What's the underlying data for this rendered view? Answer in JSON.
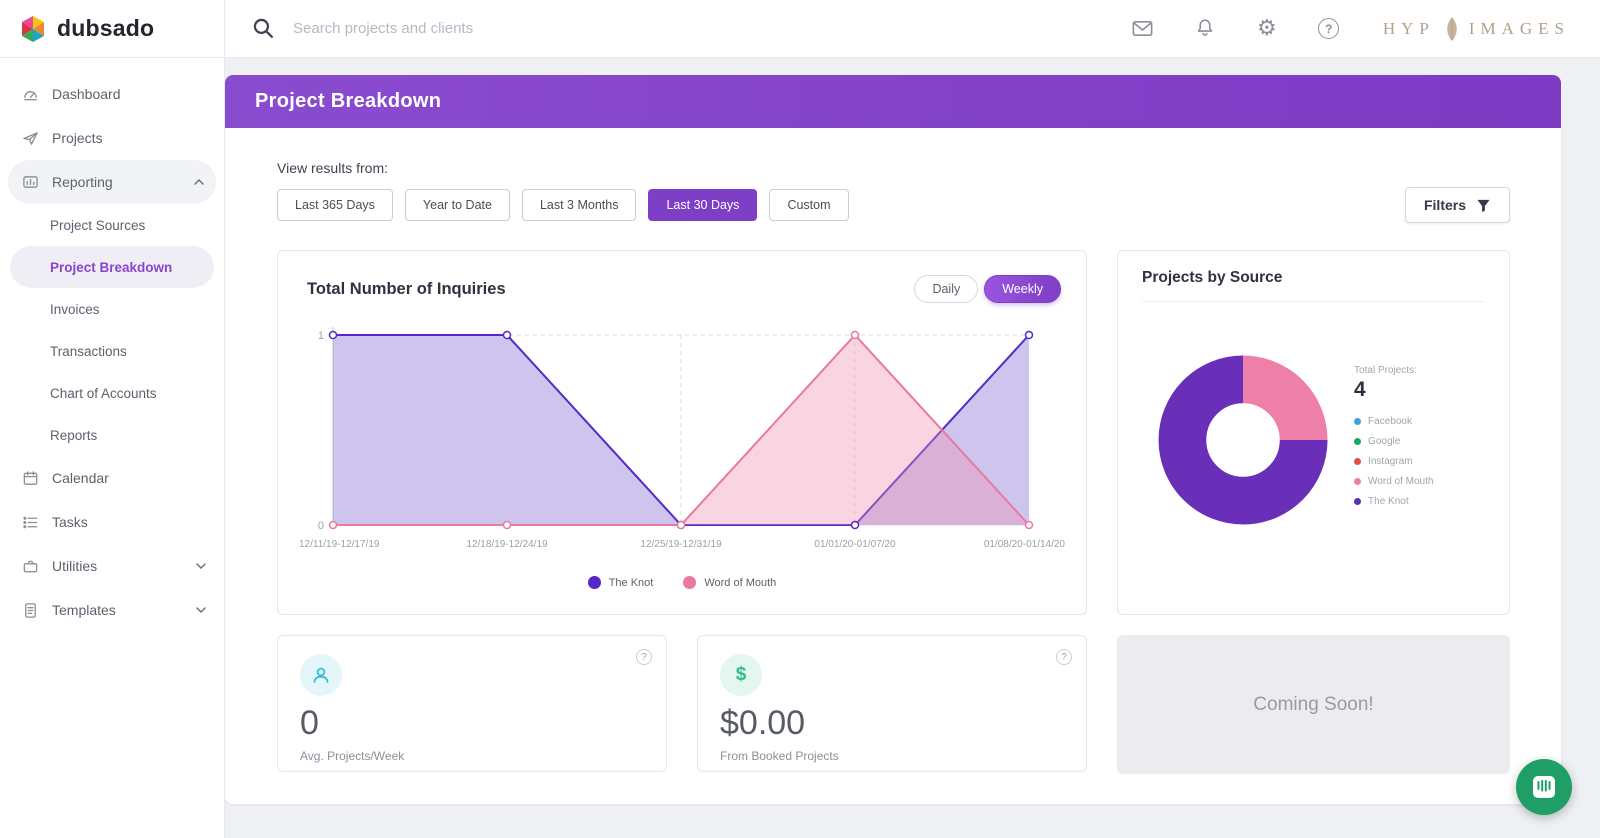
{
  "topbar": {
    "logo_text": "dubsado",
    "search_placeholder": "Search projects and clients",
    "brand": {
      "left": "HYP",
      "right": "IMAGES"
    }
  },
  "icons": {
    "gear": "⚙",
    "question": "?",
    "dollar": "$"
  },
  "colors": {
    "accent_purple": "#7e3ec6",
    "banner_gradient": [
      "#8a4ccf",
      "#7c3bc3"
    ],
    "active_nav_purple": "#8a45cc",
    "intercom_green": "#1f9e68"
  },
  "sidebar": {
    "items": [
      {
        "label": "Dashboard"
      },
      {
        "label": "Projects"
      },
      {
        "label": "Reporting",
        "expanded": true
      },
      {
        "label": "Calendar"
      },
      {
        "label": "Tasks"
      },
      {
        "label": "Utilities",
        "expanded": false
      },
      {
        "label": "Templates",
        "expanded": false
      }
    ],
    "reporting_children": [
      {
        "label": "Project Sources"
      },
      {
        "label": "Project Breakdown",
        "active": true
      },
      {
        "label": "Invoices"
      },
      {
        "label": "Transactions"
      },
      {
        "label": "Chart of Accounts"
      },
      {
        "label": "Reports"
      }
    ]
  },
  "page": {
    "title": "Project Breakdown",
    "view_results_label": "View results from:",
    "ranges": [
      {
        "label": "Last 365 Days",
        "active": false
      },
      {
        "label": "Year to Date",
        "active": false
      },
      {
        "label": "Last 3 Months",
        "active": false
      },
      {
        "label": "Last 30 Days",
        "active": true
      },
      {
        "label": "Custom",
        "active": false
      }
    ],
    "filters_label": "Filters",
    "toggle": {
      "daily": "Daily",
      "weekly": "Weekly",
      "active": "Weekly"
    }
  },
  "chart_data": [
    {
      "type": "area",
      "title": "Total Number of Inquiries",
      "categories": [
        "12/11/19-12/17/19",
        "12/18/19-12/24/19",
        "12/25/19-12/31/19",
        "01/01/20-01/07/20",
        "01/08/20-01/14/20"
      ],
      "series": [
        {
          "name": "The Knot",
          "color": "#5628c8",
          "fill": "rgba(116,88,210,0.35)",
          "values": [
            1,
            1,
            0,
            0,
            1
          ]
        },
        {
          "name": "Word of Mouth",
          "color": "#e8799f",
          "fill": "rgba(238,143,175,0.38)",
          "values": [
            0,
            0,
            0,
            1,
            0
          ]
        }
      ],
      "ylim": [
        0,
        1
      ],
      "grid": {
        "dashed_vertical_indices": [
          2,
          3
        ],
        "dashed_top_line": true
      },
      "legend_position": "bottom"
    },
    {
      "type": "pie",
      "title": "Projects by Source",
      "total_label": "Total Projects:",
      "total_value": "4",
      "slices": [
        {
          "label": "Word of Mouth",
          "value": 1,
          "color": "#ee7fa8"
        },
        {
          "label": "The Knot",
          "value": 3,
          "color": "#6a2fb8"
        }
      ],
      "legend": [
        {
          "label": "Facebook",
          "color": "#39a3dd"
        },
        {
          "label": "Google",
          "color": "#1da462"
        },
        {
          "label": "Instagram",
          "color": "#e04f4f"
        },
        {
          "label": "Word of Mouth",
          "color": "#ee7fa8"
        },
        {
          "label": "The Knot",
          "color": "#5a2ea6"
        }
      ]
    }
  ],
  "stats": [
    {
      "value": "0",
      "label": "Avg. Projects/Week"
    },
    {
      "value": "$0.00",
      "label": "From Booked Projects"
    }
  ],
  "coming_soon": "Coming Soon!"
}
